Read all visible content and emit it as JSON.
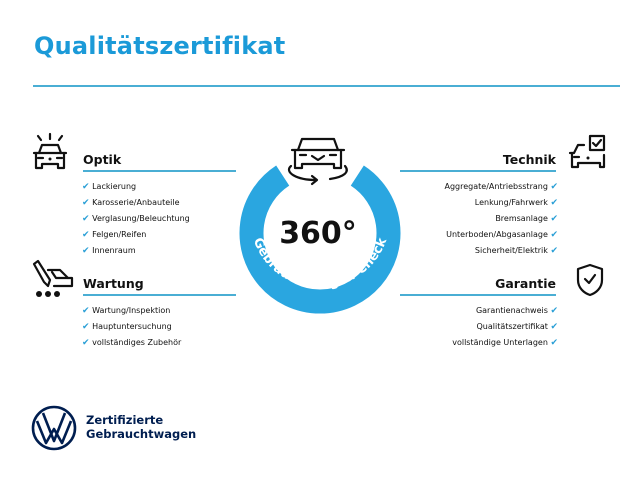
{
  "title": "Qualitätszertifikat",
  "colors": {
    "accent": "#1b9ad8",
    "ring": "#2aa6e0",
    "rule": "#4aaed4",
    "brand": "#001e50"
  },
  "center": {
    "value": "360°",
    "arc_text": "Gebrauchtwagen-Check",
    "icon": "car-rotate-icon"
  },
  "sections": {
    "optik": {
      "heading": "Optik",
      "icon": "car-lights-icon",
      "items": [
        "Lackierung",
        "Karosserie/Anbauteile",
        "Verglasung/Beleuchtung",
        "Felgen/Reifen",
        "Innenraum"
      ]
    },
    "wartung": {
      "heading": "Wartung",
      "icon": "car-service-icon",
      "items": [
        "Wartung/Inspektion",
        "Hauptuntersuchung",
        "vollständiges Zubehör"
      ]
    },
    "technik": {
      "heading": "Technik",
      "icon": "car-checkbox-icon",
      "items": [
        "Aggregate/Antriebsstrang",
        "Lenkung/Fahrwerk",
        "Bremsanlage",
        "Unterboden/Abgasanlage",
        "Sicherheit/Elektrik"
      ]
    },
    "garantie": {
      "heading": "Garantie",
      "icon": "shield-check-icon",
      "items": [
        "Garantienachweis",
        "Qualitätszertifikat",
        "vollständige Unterlagen"
      ]
    }
  },
  "check_mark": "✔",
  "brand": {
    "line1": "Zertifizierte",
    "line2": "Gebrauchtwagen",
    "logo": "vw-logo"
  }
}
